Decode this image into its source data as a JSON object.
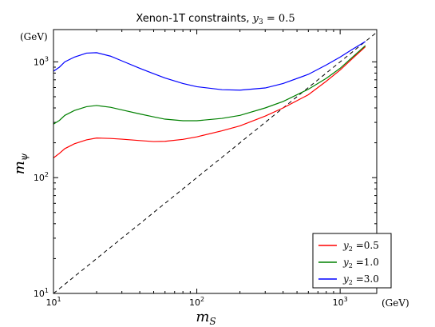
{
  "chart_data": {
    "type": "line",
    "title_prefix": "Xenon-1T constraints, ",
    "title_var": "y",
    "title_sub": "3",
    "title_suffix": " = 0.5",
    "xlabel": {
      "main": "m",
      "sub": "S"
    },
    "ylabel": {
      "main": "m",
      "sub": "ψ"
    },
    "x_unit": "(GeV)",
    "y_unit": "(GeV)",
    "x_scale": "log",
    "y_scale": "log",
    "xlim": [
      10,
      1800
    ],
    "ylim": [
      10,
      1900
    ],
    "x_ticks": [
      {
        "value": 10,
        "base": "10",
        "exp": "1"
      },
      {
        "value": 100,
        "base": "10",
        "exp": "2"
      },
      {
        "value": 1000,
        "base": "10",
        "exp": "3"
      }
    ],
    "y_ticks": [
      {
        "value": 10,
        "base": "10",
        "exp": "1"
      },
      {
        "value": 100,
        "base": "10",
        "exp": "2"
      },
      {
        "value": 1000,
        "base": "10",
        "exp": "3"
      }
    ],
    "grid": false,
    "legend_position": "bottom-right",
    "reference_line": {
      "style": "dashed",
      "color": "#000000",
      "x": [
        10,
        1800
      ],
      "y": [
        10,
        1800
      ]
    },
    "series": [
      {
        "legend_var": "y",
        "legend_sub": "2",
        "legend_value": "=0.5",
        "color": "#ff0000",
        "x": [
          10,
          11,
          12,
          14,
          17,
          20,
          25,
          30,
          40,
          50,
          60,
          80,
          100,
          150,
          200,
          300,
          400,
          600,
          800,
          1000,
          1200,
          1500
        ],
        "y": [
          148,
          162,
          178,
          196,
          212,
          220,
          218,
          215,
          209,
          205,
          206,
          214,
          225,
          254,
          280,
          340,
          400,
          520,
          680,
          850,
          1050,
          1350
        ]
      },
      {
        "legend_var": "y",
        "legend_sub": "2",
        "legend_value": "=1.0",
        "color": "#008000",
        "x": [
          10,
          11,
          12,
          14,
          17,
          20,
          25,
          30,
          40,
          50,
          60,
          80,
          100,
          150,
          200,
          300,
          400,
          600,
          800,
          1000,
          1200,
          1500
        ],
        "y": [
          290,
          312,
          345,
          380,
          410,
          420,
          405,
          385,
          355,
          335,
          320,
          310,
          310,
          325,
          345,
          400,
          455,
          580,
          720,
          880,
          1080,
          1380
        ]
      },
      {
        "legend_var": "y",
        "legend_sub": "2",
        "legend_value": "=3.0",
        "color": "#0000ff",
        "x": [
          10,
          11,
          12,
          14,
          17,
          20,
          25,
          30,
          40,
          50,
          60,
          80,
          100,
          150,
          200,
          300,
          400,
          600,
          800,
          1000,
          1200,
          1500
        ],
        "y": [
          830,
          900,
          1000,
          1100,
          1190,
          1200,
          1120,
          1020,
          880,
          790,
          725,
          650,
          610,
          575,
          570,
          595,
          650,
          780,
          940,
          1100,
          1270,
          1500
        ]
      }
    ]
  }
}
